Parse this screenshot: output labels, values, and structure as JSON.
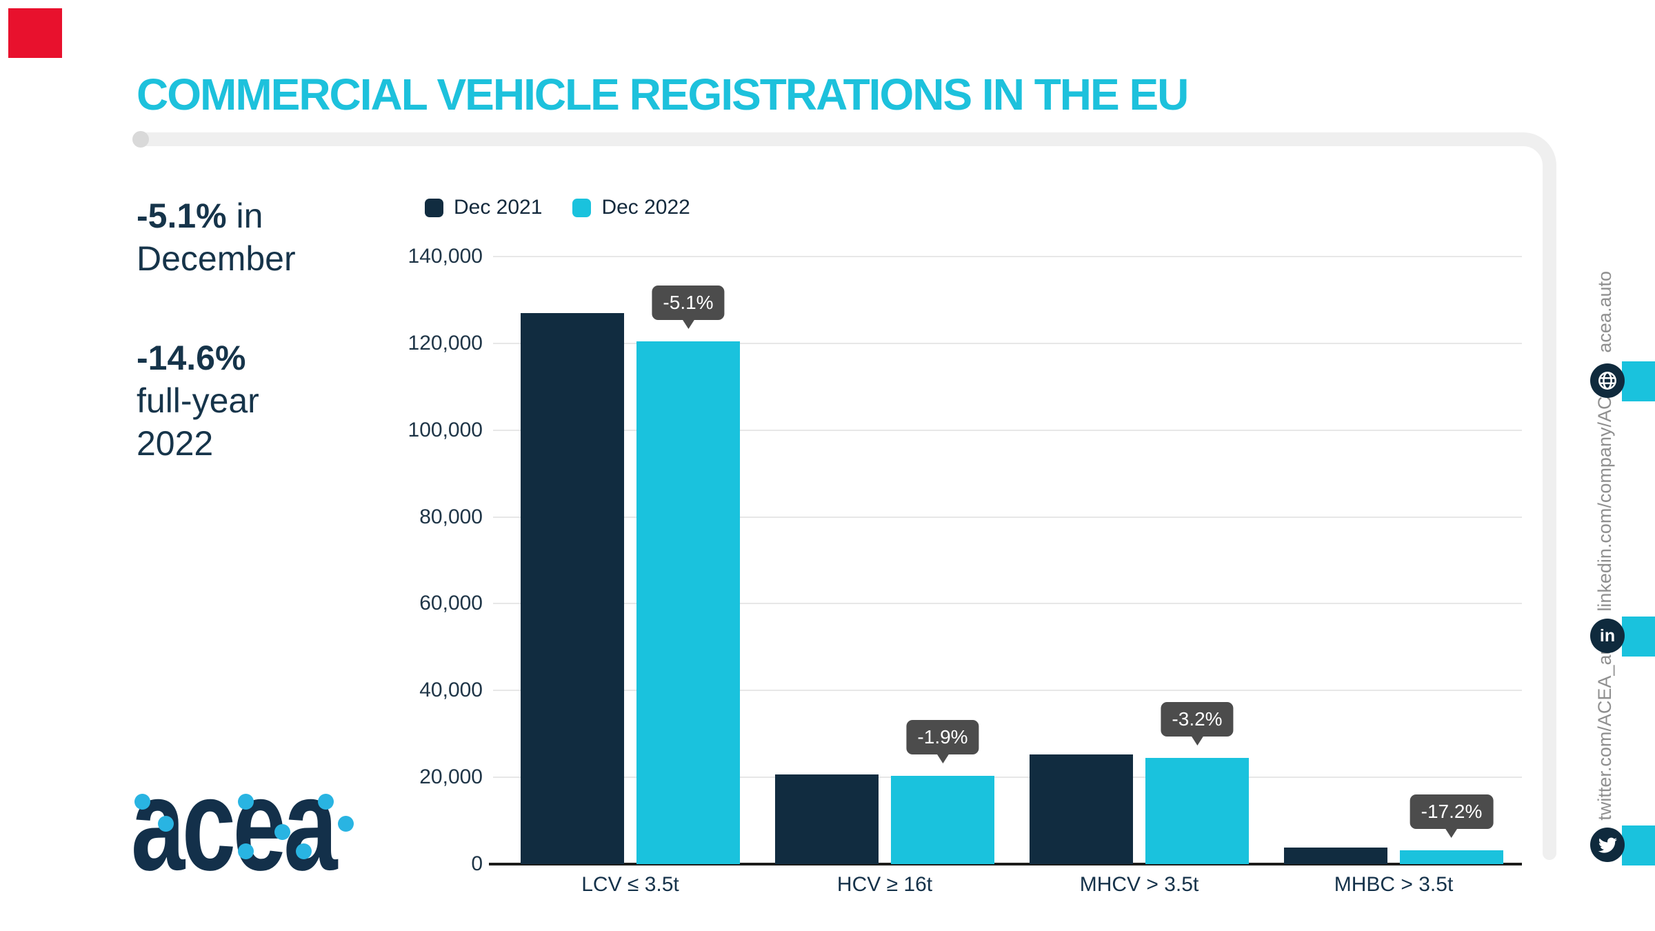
{
  "header": {
    "title": "COMMERCIAL VEHICLE REGISTRATIONS IN THE EU"
  },
  "stats": {
    "december": {
      "value": "-5.1%",
      "suffix": " in",
      "line2": "December"
    },
    "fullyear": {
      "value": "-14.6%",
      "line2": "full-year",
      "line3": "2022"
    }
  },
  "logo": {
    "text": "acea"
  },
  "sidebar": {
    "items": [
      {
        "label": "acea.auto",
        "icon": "globe-icon"
      },
      {
        "label": "linkedin.com/company/ACEA/",
        "icon": "linkedin-icon"
      },
      {
        "label": "twitter.com/ACEA_auto",
        "icon": "twitter-icon"
      }
    ]
  },
  "colors": {
    "accent_cyan": "#1ac2dd",
    "title_cyan": "#1dc1dc",
    "dark_navy": "#112c40",
    "text_navy": "#16344a",
    "tooltip_gray": "#4c4c4c",
    "frame_gray": "#efefef",
    "red_accent": "#e8112d",
    "logo_dot_blue": "#29b4e2"
  },
  "chart_data": {
    "type": "bar",
    "title": "COMMERCIAL VEHICLE REGISTRATIONS IN THE EU",
    "categories": [
      "LCV ≤ 3.5t",
      "HCV ≥ 16t",
      "MHCV > 3.5t",
      "MHBC > 3.5t"
    ],
    "series": [
      {
        "name": "Dec 2021",
        "color": "#112c40",
        "values": [
          127000,
          20700,
          25300,
          3800
        ]
      },
      {
        "name": "Dec 2022",
        "color": "#1ac2dd",
        "values": [
          120500,
          20300,
          24500,
          3150
        ]
      }
    ],
    "change_labels": [
      "-5.1%",
      "-1.9%",
      "-3.2%",
      "-17.2%"
    ],
    "xlabel": "",
    "ylabel": "",
    "ylim": [
      0,
      140000
    ],
    "ytick_step": 20000,
    "grid": "horizontal",
    "legend_position": "top-left"
  }
}
